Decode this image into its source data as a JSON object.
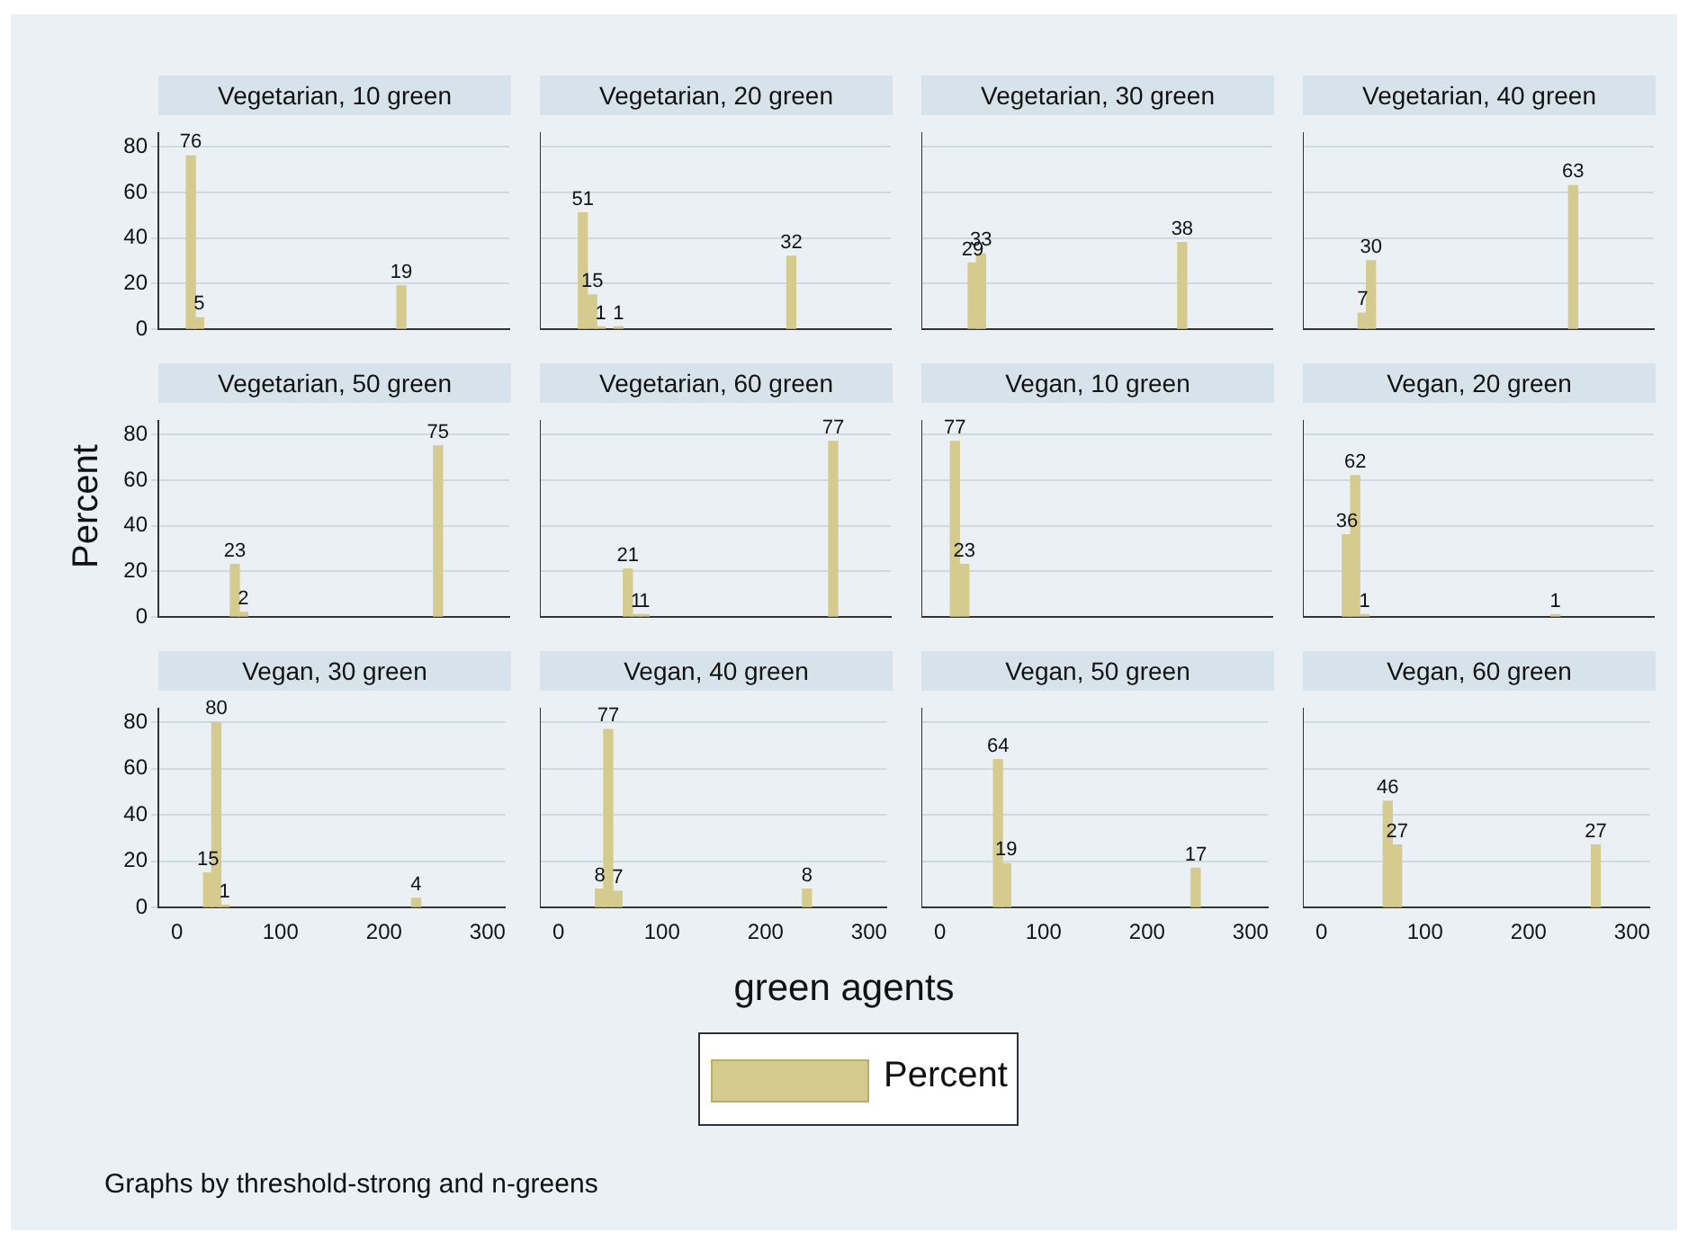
{
  "chart_data": [
    {
      "type": "bar",
      "title": "Vegetarian, 10 green",
      "ylabel": "Percent",
      "xlabel": "green agents",
      "legend": "bottom",
      "annotations": [
        "Graphs by threshold-strong and n-greens"
      ],
      "x": [
        13,
        21,
        214
      ],
      "series": [
        {
          "name": "Percent",
          "color": "#d6cb8e",
          "values": [
            76,
            5,
            19
          ]
        }
      ],
      "xlim": [
        -18,
        317
      ],
      "xticks": [
        0,
        100,
        200,
        300
      ],
      "ylim": [
        0,
        86
      ],
      "yticks": [
        0,
        20,
        40,
        60,
        80
      ],
      "grid": "y",
      "data_labels": true,
      "tick_labels": "y"
    },
    {
      "type": "bar",
      "title": "Vegetarian, 20 green",
      "x": [
        23,
        32,
        40,
        57,
        222
      ],
      "series": [
        {
          "color": "#d6cb8e",
          "values": [
            51,
            15,
            1,
            1,
            32
          ]
        }
      ],
      "xlim": [
        -18,
        317
      ],
      "xticks": [
        0,
        100,
        200,
        300
      ],
      "ylim": [
        0,
        86
      ],
      "yticks": [
        0,
        20,
        40,
        60,
        80
      ],
      "grid": "y",
      "data_labels": true,
      "tick_labels": false
    },
    {
      "type": "bar",
      "title": "Vegetarian, 30 green",
      "x": [
        31,
        39,
        231
      ],
      "series": [
        {
          "color": "#d6cb8e",
          "values": [
            29,
            33,
            38
          ]
        }
      ],
      "xlim": [
        -18,
        317
      ],
      "xticks": [
        0,
        100,
        200,
        300
      ],
      "ylim": [
        0,
        86
      ],
      "yticks": [
        0,
        20,
        40,
        60,
        80
      ],
      "grid": "y",
      "data_labels": true,
      "tick_labels": false
    },
    {
      "type": "bar",
      "title": "Vegetarian, 40 green",
      "x": [
        39,
        47,
        240
      ],
      "series": [
        {
          "color": "#d6cb8e",
          "values": [
            7,
            30,
            63
          ]
        }
      ],
      "xlim": [
        -18,
        317
      ],
      "xticks": [
        0,
        100,
        200,
        300
      ],
      "ylim": [
        0,
        86
      ],
      "yticks": [
        0,
        20,
        40,
        60,
        80
      ],
      "grid": "y",
      "data_labels": true,
      "tick_labels": false
    },
    {
      "type": "bar",
      "title": "Vegetarian, 50 green",
      "x": [
        55,
        63,
        249
      ],
      "series": [
        {
          "color": "#d6cb8e",
          "values": [
            23,
            2,
            75
          ]
        }
      ],
      "xlim": [
        -18,
        317
      ],
      "xticks": [
        0,
        100,
        200,
        300
      ],
      "ylim": [
        0,
        86
      ],
      "yticks": [
        0,
        20,
        40,
        60,
        80
      ],
      "grid": "y",
      "data_labels": true,
      "tick_labels": "y"
    },
    {
      "type": "bar",
      "title": "Vegetarian, 60 green",
      "x": [
        66,
        74,
        82,
        262
      ],
      "series": [
        {
          "color": "#d6cb8e",
          "values": [
            21,
            1,
            1,
            77
          ]
        }
      ],
      "xlim": [
        -18,
        317
      ],
      "xticks": [
        0,
        100,
        200,
        300
      ],
      "ylim": [
        0,
        86
      ],
      "yticks": [
        0,
        20,
        40,
        60,
        80
      ],
      "grid": "y",
      "data_labels": true,
      "tick_labels": false
    },
    {
      "type": "bar",
      "title": "Vegan, 10 green",
      "x": [
        14,
        23
      ],
      "series": [
        {
          "color": "#d6cb8e",
          "values": [
            77,
            23
          ]
        }
      ],
      "xlim": [
        -18,
        317
      ],
      "xticks": [
        0,
        100,
        200,
        300
      ],
      "ylim": [
        0,
        86
      ],
      "yticks": [
        0,
        20,
        40,
        60,
        80
      ],
      "grid": "y",
      "data_labels": true,
      "tick_labels": false
    },
    {
      "type": "bar",
      "title": "Vegan, 20 green",
      "x": [
        24,
        32,
        41,
        223
      ],
      "series": [
        {
          "color": "#d6cb8e",
          "values": [
            36,
            62,
            1,
            1
          ]
        }
      ],
      "xlim": [
        -18,
        317
      ],
      "xticks": [
        0,
        100,
        200,
        300
      ],
      "ylim": [
        0,
        86
      ],
      "yticks": [
        0,
        20,
        40,
        60,
        80
      ],
      "grid": "y",
      "data_labels": true,
      "tick_labels": false
    },
    {
      "type": "bar",
      "title": "Vegan, 30 green",
      "x": [
        30,
        38,
        46,
        231
      ],
      "series": [
        {
          "color": "#d6cb8e",
          "values": [
            15,
            80,
            1,
            4
          ]
        }
      ],
      "xlim": [
        -18,
        317
      ],
      "xticks": [
        0,
        100,
        200,
        300
      ],
      "ylim": [
        0,
        86
      ],
      "yticks": [
        0,
        20,
        40,
        60,
        80
      ],
      "grid": "y",
      "data_labels": true
    },
    {
      "type": "bar",
      "title": "Vegan, 40 green",
      "x": [
        40,
        48,
        57,
        240
      ],
      "series": [
        {
          "color": "#d6cb8e",
          "values": [
            8,
            77,
            7,
            8
          ]
        }
      ],
      "xlim": [
        -18,
        317
      ],
      "xticks": [
        0,
        100,
        200,
        300
      ],
      "ylim": [
        0,
        86
      ],
      "yticks": [
        0,
        20,
        40,
        60,
        80
      ],
      "grid": "y",
      "data_labels": true,
      "tick_labels": "x"
    },
    {
      "type": "bar",
      "title": "Vegan, 50 green",
      "x": [
        56,
        64,
        247
      ],
      "series": [
        {
          "color": "#d6cb8e",
          "values": [
            64,
            19,
            17
          ]
        }
      ],
      "xlim": [
        -18,
        317
      ],
      "xticks": [
        0,
        100,
        200,
        300
      ],
      "ylim": [
        0,
        86
      ],
      "yticks": [
        0,
        20,
        40,
        60,
        80
      ],
      "grid": "y",
      "data_labels": true,
      "tick_labels": "x"
    },
    {
      "type": "bar",
      "title": "Vegan, 60 green",
      "x": [
        64,
        73,
        265
      ],
      "series": [
        {
          "color": "#d6cb8e",
          "values": [
            46,
            27,
            27
          ]
        }
      ],
      "xlim": [
        -18,
        317
      ],
      "xticks": [
        0,
        100,
        200,
        300
      ],
      "ylim": [
        0,
        86
      ],
      "yticks": [
        0,
        20,
        40,
        60,
        80
      ],
      "grid": "y",
      "data_labels": true,
      "tick_labels": "x"
    }
  ]
}
